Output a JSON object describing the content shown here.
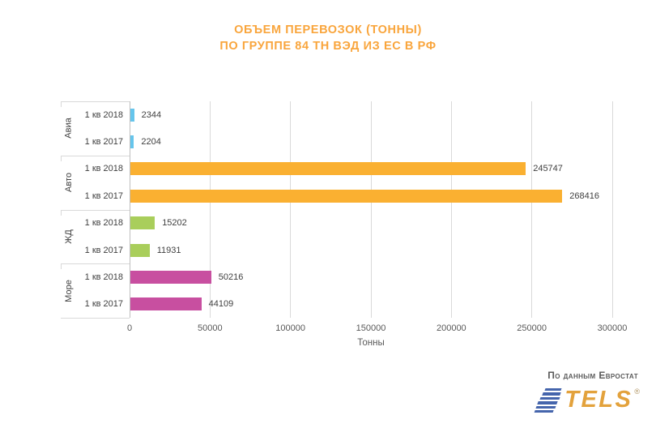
{
  "chart_data": {
    "type": "bar",
    "orientation": "horizontal",
    "title_line1": "ОБЪЕМ ПЕРЕВОЗОК (ТОННЫ)",
    "title_line2": "ПО ГРУППЕ 84 ТН ВЭД ИЗ ЕС В РФ",
    "xlabel": "Тонны",
    "xlim": [
      0,
      300000
    ],
    "xticks": [
      0,
      50000,
      100000,
      150000,
      200000,
      250000,
      300000
    ],
    "grid": true,
    "legend": "none",
    "groups": [
      {
        "name": "Авиа",
        "color": "#66C5EC",
        "bars": [
          {
            "label": "1 кв 2018",
            "value": 2344
          },
          {
            "label": "1 кв 2017",
            "value": 2204
          }
        ]
      },
      {
        "name": "Авто",
        "color": "#FAB031",
        "bars": [
          {
            "label": "1 кв 2018",
            "value": 245747
          },
          {
            "label": "1 кв 2017",
            "value": 268416
          }
        ]
      },
      {
        "name": "ЖД",
        "color": "#A9CE5B",
        "bars": [
          {
            "label": "1 кв 2018",
            "value": 15202
          },
          {
            "label": "1 кв 2017",
            "value": 11931
          }
        ]
      },
      {
        "name": "Море",
        "color": "#C84FA0",
        "bars": [
          {
            "label": "1 кв 2018",
            "value": 50216
          },
          {
            "label": "1 кв 2017",
            "value": 44109
          }
        ]
      }
    ]
  },
  "colors": {
    "title": "#F9A53C",
    "value_text": "#404040",
    "axis_text": "#595959",
    "gridline": "#D9D9D9",
    "axis_line": "#BFBFBF",
    "logo_blue": "#4565AC",
    "logo_orange": "#E3A23C"
  },
  "footer": {
    "source": "По данным Евростат",
    "logo_text": "TELS",
    "registered": "®"
  }
}
